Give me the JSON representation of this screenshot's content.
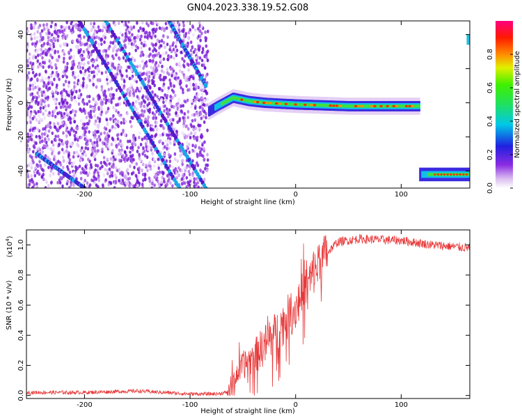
{
  "title": "GN04.2023.338.19.52.G08",
  "chart_data": [
    {
      "type": "heatmap",
      "xlabel": "Height of straight line (km)",
      "ylabel": "Frequency (Hz)",
      "xlim": [
        -255,
        165
      ],
      "ylim": [
        -50,
        48
      ],
      "x_ticks": [
        -200,
        -100,
        0,
        100
      ],
      "x_tick_labels": [
        "-200",
        "-100",
        "0",
        "100"
      ],
      "y_ticks": [
        -40,
        -20,
        0,
        20,
        40
      ],
      "y_tick_labels": [
        "-40",
        "-20",
        "0",
        "20",
        "40"
      ],
      "colorbar": {
        "label": "Normalized spectral amplitude",
        "range": [
          0,
          1
        ],
        "ticks": [
          0.0,
          0.2,
          0.4,
          0.6,
          0.8
        ],
        "tick_labels": [
          "0.0",
          "0.2",
          "0.4",
          "0.6",
          "0.8"
        ]
      },
      "noise_region_x": [
        -255,
        -83
      ],
      "signal_band": [
        {
          "x": -83,
          "f": -5.0
        },
        {
          "x": -75,
          "f": -2.0
        },
        {
          "x": -60,
          "f": 3.0
        },
        {
          "x": -45,
          "f": 1.0
        },
        {
          "x": -30,
          "f": 0.0
        },
        {
          "x": 0,
          "f": -1.0
        },
        {
          "x": 50,
          "f": -2.0
        },
        {
          "x": 117,
          "f": -2.0
        }
      ],
      "lower_band": {
        "x_start": 117,
        "x_end": 165,
        "f": -42
      },
      "upper_segment": {
        "x_start": 162,
        "x_end": 165,
        "f": 37
      },
      "diagonal_tracks": [
        {
          "x_start": -205,
          "f_start": 48,
          "x_end": -110,
          "f_end": -50
        },
        {
          "x_start": -180,
          "f_start": 48,
          "x_end": -85,
          "f_end": -50
        },
        {
          "x_start": -245,
          "f_start": -30,
          "x_end": -200,
          "f_end": -50
        },
        {
          "x_start": -120,
          "f_start": 48,
          "x_end": -85,
          "f_end": 10
        }
      ]
    },
    {
      "type": "line",
      "xlabel": "Height of straight line (km)",
      "ylabel": "SNR (10 * v/v)",
      "y_multiplier": "(x10",
      "y_multiplier_exp": "4",
      "y_multiplier_close": ")",
      "xlim": [
        -255,
        165
      ],
      "ylim": [
        -0.02,
        1.1
      ],
      "x_ticks": [
        -200,
        -100,
        0,
        100
      ],
      "x_tick_labels": [
        "-200",
        "-100",
        "0",
        "100"
      ],
      "y_ticks": [
        0.0,
        0.2,
        0.4,
        0.6,
        0.8,
        1.0
      ],
      "y_tick_labels": [
        "0.0",
        "0.2",
        "0.4",
        "0.6",
        "0.8",
        "1.0"
      ],
      "color": "#e8393a",
      "series_envelope": [
        {
          "x": -255,
          "y": 0.02
        },
        {
          "x": -200,
          "y": 0.02
        },
        {
          "x": -150,
          "y": 0.03
        },
        {
          "x": -100,
          "y": 0.01
        },
        {
          "x": -75,
          "y": 0.01
        },
        {
          "x": -65,
          "y": 0.02
        },
        {
          "x": -60,
          "y": 0.08
        },
        {
          "x": -55,
          "y": 0.15
        },
        {
          "x": -50,
          "y": 0.2
        },
        {
          "x": -40,
          "y": 0.25
        },
        {
          "x": -30,
          "y": 0.33
        },
        {
          "x": -20,
          "y": 0.4
        },
        {
          "x": -10,
          "y": 0.5
        },
        {
          "x": 0,
          "y": 0.58
        },
        {
          "x": 10,
          "y": 0.72
        },
        {
          "x": 20,
          "y": 0.85
        },
        {
          "x": 30,
          "y": 0.95
        },
        {
          "x": 40,
          "y": 1.02
        },
        {
          "x": 60,
          "y": 1.04
        },
        {
          "x": 100,
          "y": 1.03
        },
        {
          "x": 130,
          "y": 1.0
        },
        {
          "x": 165,
          "y": 0.98
        }
      ]
    }
  ]
}
